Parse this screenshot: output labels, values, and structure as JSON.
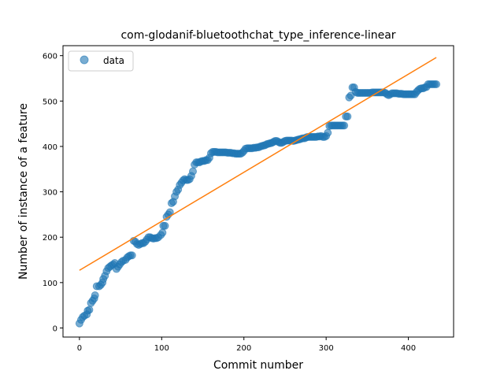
{
  "chart_data": {
    "type": "scatter",
    "title": "com-glodanif-bluetoothchat_type_inference-linear",
    "xlabel": "Commit number",
    "ylabel": "Number of instance of a feature",
    "xlim": [
      -20,
      455
    ],
    "ylim": [
      -20,
      622
    ],
    "xticks": [
      0,
      100,
      200,
      300,
      400
    ],
    "yticks": [
      0,
      100,
      200,
      300,
      400,
      500,
      600
    ],
    "grid": false,
    "legend": {
      "position": "top-left",
      "entries": [
        "data"
      ]
    },
    "series": [
      {
        "name": "data",
        "kind": "scatter",
        "color": "#1f77b4",
        "alpha": 0.6,
        "points": [
          [
            0,
            10
          ],
          [
            2,
            18
          ],
          [
            4,
            24
          ],
          [
            6,
            27
          ],
          [
            9,
            30
          ],
          [
            10,
            38
          ],
          [
            12,
            40
          ],
          [
            14,
            55
          ],
          [
            16,
            60
          ],
          [
            18,
            65
          ],
          [
            19,
            72
          ],
          [
            21,
            92
          ],
          [
            24,
            92
          ],
          [
            26,
            95
          ],
          [
            28,
            100
          ],
          [
            29,
            108
          ],
          [
            31,
            115
          ],
          [
            33,
            125
          ],
          [
            35,
            132
          ],
          [
            37,
            135
          ],
          [
            39,
            138
          ],
          [
            41,
            140
          ],
          [
            43,
            143
          ],
          [
            45,
            130
          ],
          [
            47,
            135
          ],
          [
            49,
            140
          ],
          [
            51,
            145
          ],
          [
            53,
            148
          ],
          [
            56,
            150
          ],
          [
            58,
            155
          ],
          [
            60,
            158
          ],
          [
            62,
            160
          ],
          [
            64,
            160
          ],
          [
            66,
            192
          ],
          [
            68,
            190
          ],
          [
            70,
            185
          ],
          [
            72,
            183
          ],
          [
            74,
            185
          ],
          [
            76,
            187
          ],
          [
            78,
            187
          ],
          [
            80,
            190
          ],
          [
            82,
            195
          ],
          [
            84,
            200
          ],
          [
            86,
            200
          ],
          [
            88,
            198
          ],
          [
            90,
            197
          ],
          [
            92,
            198
          ],
          [
            94,
            198
          ],
          [
            96,
            200
          ],
          [
            99,
            205
          ],
          [
            101,
            210
          ],
          [
            102,
            225
          ],
          [
            104,
            225
          ],
          [
            106,
            245
          ],
          [
            108,
            250
          ],
          [
            110,
            255
          ],
          [
            112,
            275
          ],
          [
            114,
            278
          ],
          [
            116,
            290
          ],
          [
            118,
            300
          ],
          [
            120,
            305
          ],
          [
            122,
            315
          ],
          [
            124,
            320
          ],
          [
            126,
            325
          ],
          [
            128,
            328
          ],
          [
            130,
            326
          ],
          [
            132,
            326
          ],
          [
            134,
            328
          ],
          [
            136,
            335
          ],
          [
            138,
            345
          ],
          [
            140,
            360
          ],
          [
            142,
            365
          ],
          [
            144,
            365
          ],
          [
            146,
            365
          ],
          [
            148,
            367
          ],
          [
            150,
            368
          ],
          [
            152,
            368
          ],
          [
            154,
            370
          ],
          [
            156,
            370
          ],
          [
            158,
            375
          ],
          [
            160,
            385
          ],
          [
            162,
            388
          ],
          [
            164,
            388
          ],
          [
            166,
            388
          ],
          [
            168,
            387
          ],
          [
            170,
            387
          ],
          [
            172,
            387
          ],
          [
            174,
            387
          ],
          [
            176,
            387
          ],
          [
            178,
            387
          ],
          [
            180,
            386
          ],
          [
            182,
            386
          ],
          [
            184,
            386
          ],
          [
            186,
            385
          ],
          [
            188,
            385
          ],
          [
            190,
            384
          ],
          [
            192,
            384
          ],
          [
            194,
            384
          ],
          [
            196,
            384
          ],
          [
            198,
            386
          ],
          [
            200,
            390
          ],
          [
            202,
            395
          ],
          [
            204,
            396
          ],
          [
            206,
            396
          ],
          [
            208,
            396
          ],
          [
            210,
            396
          ],
          [
            212,
            397
          ],
          [
            214,
            397
          ],
          [
            216,
            398
          ],
          [
            218,
            398
          ],
          [
            220,
            400
          ],
          [
            222,
            401
          ],
          [
            224,
            402
          ],
          [
            226,
            403
          ],
          [
            228,
            405
          ],
          [
            230,
            406
          ],
          [
            232,
            407
          ],
          [
            234,
            408
          ],
          [
            236,
            410
          ],
          [
            238,
            412
          ],
          [
            240,
            412
          ],
          [
            242,
            410
          ],
          [
            244,
            408
          ],
          [
            246,
            408
          ],
          [
            248,
            410
          ],
          [
            250,
            412
          ],
          [
            252,
            413
          ],
          [
            254,
            413
          ],
          [
            256,
            413
          ],
          [
            258,
            413
          ],
          [
            260,
            412
          ],
          [
            262,
            413
          ],
          [
            264,
            414
          ],
          [
            266,
            415
          ],
          [
            268,
            416
          ],
          [
            270,
            417
          ],
          [
            272,
            418
          ],
          [
            274,
            418
          ],
          [
            276,
            420
          ],
          [
            278,
            421
          ],
          [
            280,
            421
          ],
          [
            282,
            421
          ],
          [
            284,
            421
          ],
          [
            286,
            421
          ],
          [
            288,
            421
          ],
          [
            290,
            422
          ],
          [
            292,
            422
          ],
          [
            294,
            423
          ],
          [
            296,
            421
          ],
          [
            298,
            421
          ],
          [
            300,
            423
          ],
          [
            302,
            430
          ],
          [
            304,
            445
          ],
          [
            306,
            446
          ],
          [
            308,
            446
          ],
          [
            310,
            446
          ],
          [
            312,
            446
          ],
          [
            314,
            446
          ],
          [
            316,
            446
          ],
          [
            318,
            446
          ],
          [
            320,
            446
          ],
          [
            322,
            446
          ],
          [
            324,
            466
          ],
          [
            326,
            466
          ],
          [
            328,
            508
          ],
          [
            330,
            512
          ],
          [
            332,
            530
          ],
          [
            334,
            530
          ],
          [
            336,
            520
          ],
          [
            338,
            518
          ],
          [
            340,
            518
          ],
          [
            342,
            518
          ],
          [
            344,
            518
          ],
          [
            346,
            518
          ],
          [
            348,
            518
          ],
          [
            350,
            518
          ],
          [
            352,
            518
          ],
          [
            354,
            518
          ],
          [
            356,
            519
          ],
          [
            358,
            519
          ],
          [
            360,
            519
          ],
          [
            362,
            519
          ],
          [
            364,
            519
          ],
          [
            366,
            519
          ],
          [
            368,
            519
          ],
          [
            370,
            519
          ],
          [
            372,
            518
          ],
          [
            374,
            515
          ],
          [
            376,
            513
          ],
          [
            378,
            515
          ],
          [
            380,
            517
          ],
          [
            382,
            517
          ],
          [
            384,
            517
          ],
          [
            386,
            517
          ],
          [
            388,
            516
          ],
          [
            390,
            516
          ],
          [
            392,
            516
          ],
          [
            394,
            515
          ],
          [
            396,
            515
          ],
          [
            398,
            515
          ],
          [
            400,
            515
          ],
          [
            402,
            515
          ],
          [
            404,
            515
          ],
          [
            406,
            515
          ],
          [
            408,
            515
          ],
          [
            410,
            520
          ],
          [
            412,
            524
          ],
          [
            414,
            527
          ],
          [
            416,
            528
          ],
          [
            418,
            528
          ],
          [
            420,
            530
          ],
          [
            422,
            531
          ],
          [
            424,
            537
          ],
          [
            426,
            537
          ],
          [
            428,
            537
          ],
          [
            430,
            537
          ],
          [
            432,
            537
          ],
          [
            434,
            537
          ]
        ]
      },
      {
        "name": "",
        "kind": "line",
        "color": "#ff7f0e",
        "points": [
          [
            0,
            127
          ],
          [
            434,
            596
          ]
        ]
      }
    ]
  }
}
